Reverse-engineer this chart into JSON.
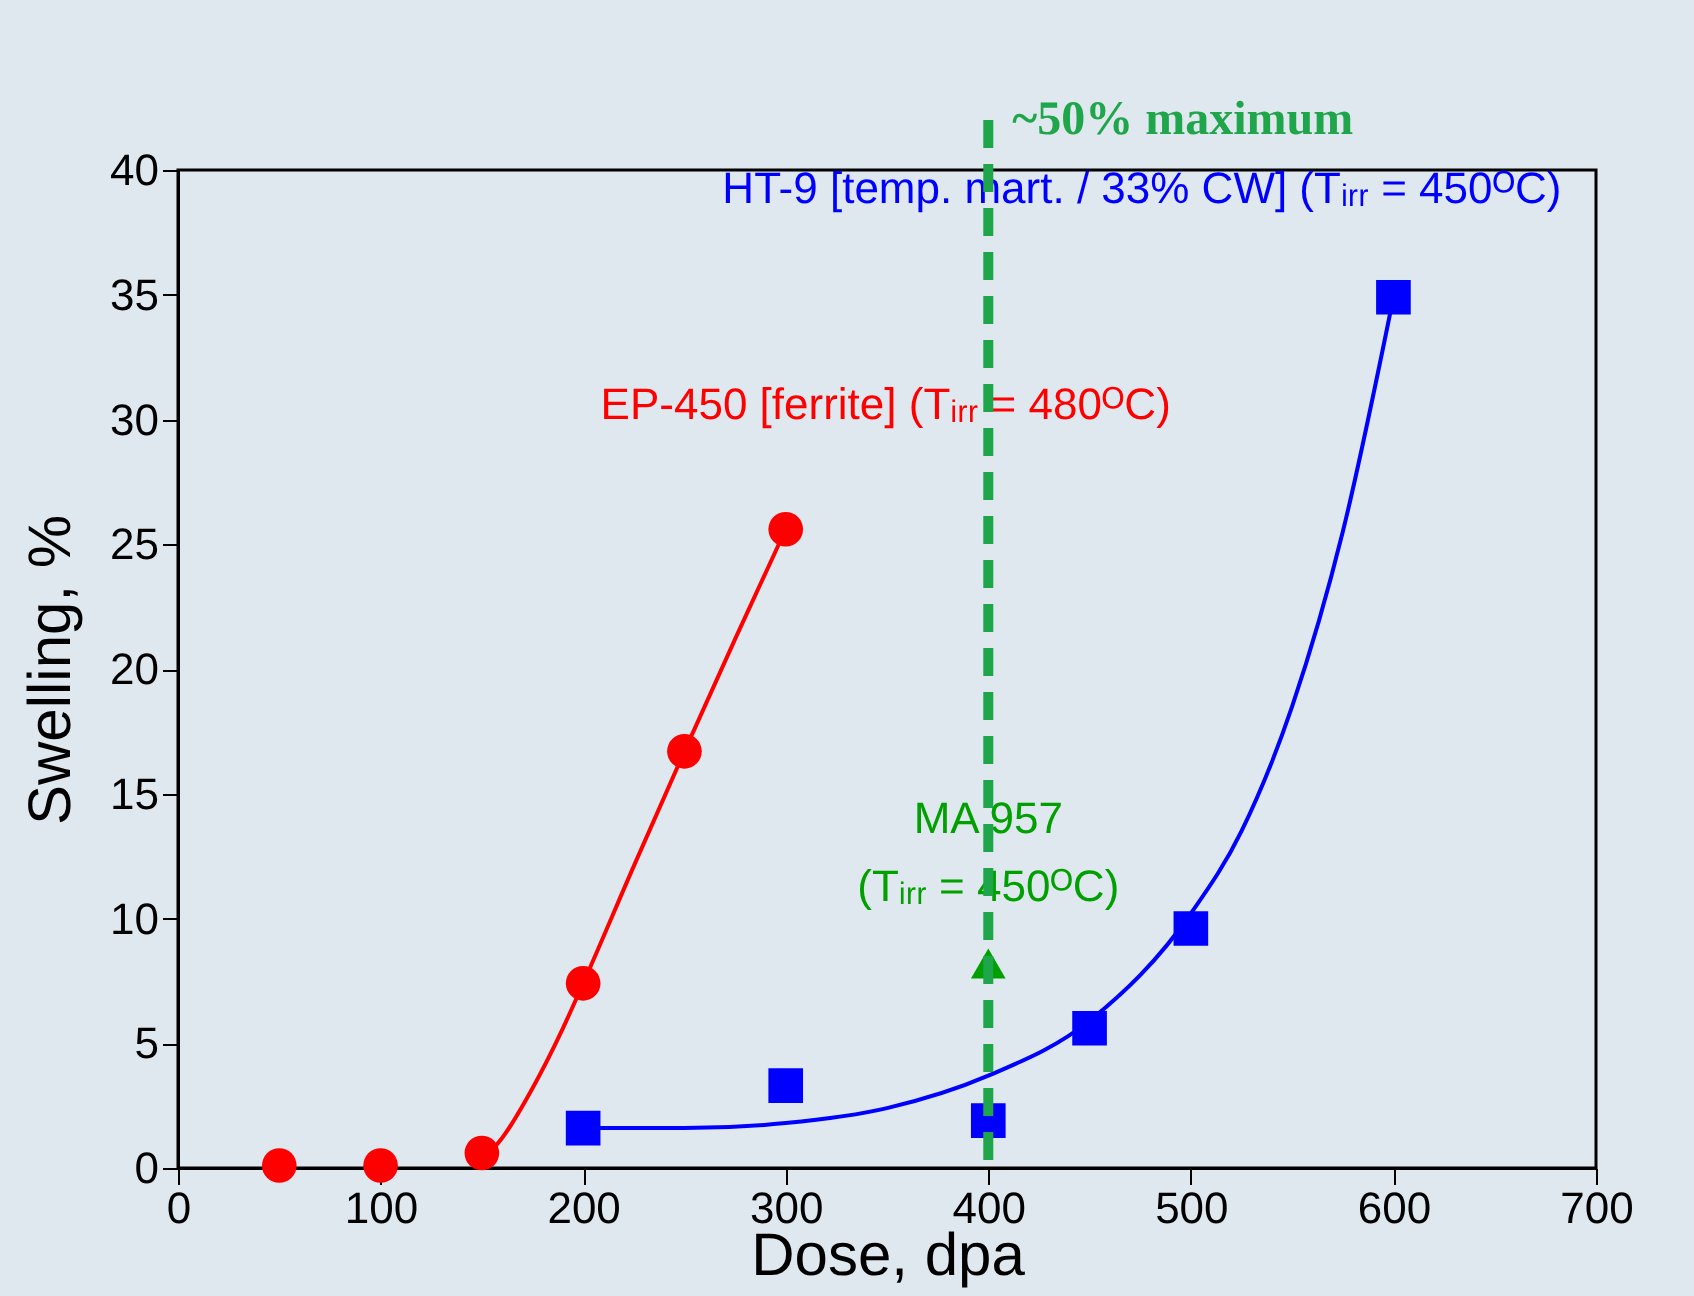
{
  "chart_data": {
    "type": "scatter",
    "xlabel": "Dose, dpa",
    "ylabel": "Swelling, %",
    "xlim": [
      0,
      700
    ],
    "xticks": [
      0,
      100,
      200,
      300,
      400,
      500,
      600,
      700
    ],
    "ylim": [
      0,
      40
    ],
    "yticks": [
      0,
      5,
      10,
      15,
      20,
      25,
      30,
      35,
      40
    ],
    "grid": false,
    "series": [
      {
        "name": "EP-450 [ferrite] (Tᵢᵣᵣ = 480ᴼC)",
        "color": "#ff0000",
        "marker": "circle",
        "x": [
          50,
          100,
          150,
          200,
          250,
          300
        ],
        "values": [
          0.1,
          0.1,
          0.6,
          7.4,
          16.7,
          25.6
        ]
      },
      {
        "name": "HT-9 [temp. mart. / 33% CW] (Tᵢᵣᵣ = 450ᴼC)",
        "color": "#0000ff",
        "marker": "square",
        "x": [
          200,
          300,
          400,
          450,
          500,
          600
        ],
        "values": [
          1.6,
          3.3,
          1.9,
          5.6,
          9.6,
          34.9
        ]
      },
      {
        "name": "MA 957\n(Tᵢᵣᵣ = 450ᴼC)",
        "color": "#00a000",
        "marker": "triangle",
        "x": [
          400
        ],
        "values": [
          8.2
        ]
      },
      {
        "type": "line",
        "color": "#ff0000",
        "marker": "none",
        "x": [
          150,
          160,
          175,
          190,
          200,
          225,
          250,
          275,
          300
        ],
        "values": [
          0.3,
          1.2,
          3.2,
          5.6,
          7.4,
          12.1,
          16.7,
          21.2,
          25.6
        ]
      },
      {
        "type": "line",
        "color": "#0000ff",
        "marker": "none",
        "x": [
          200,
          250,
          300,
          350,
          400,
          450,
          500,
          525,
          550,
          575,
          600
        ],
        "values": [
          1.6,
          1.6,
          1.8,
          2.4,
          3.7,
          5.9,
          10.2,
          13.5,
          18.5,
          25.5,
          34.9
        ]
      }
    ],
    "ref_lines": [
      {
        "axis": "x",
        "value": 400,
        "label": "~50% maximum",
        "color": "#1fa64a",
        "line_style": "dashed"
      }
    ]
  }
}
